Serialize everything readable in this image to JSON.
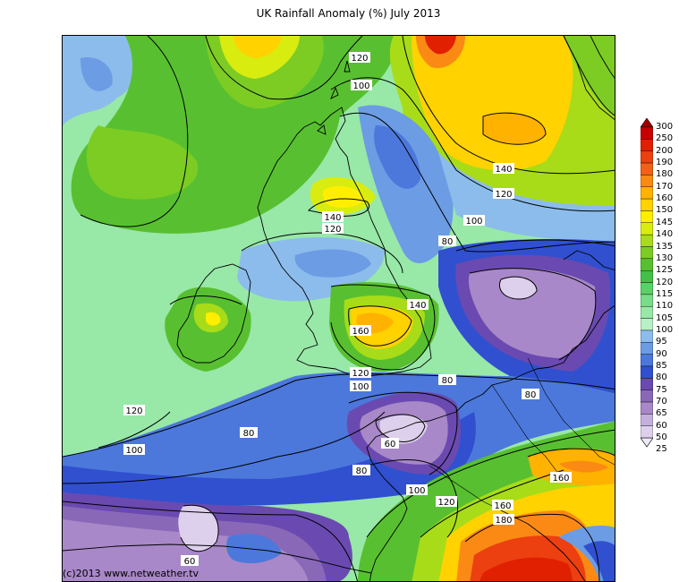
{
  "title": "UK Rainfall Anomaly (%) July 2013",
  "copyright": "(c)2013 www.netweather.tv",
  "legend": {
    "levels": [
      "300",
      "250",
      "200",
      "190",
      "180",
      "170",
      "160",
      "150",
      "145",
      "140",
      "135",
      "130",
      "125",
      "120",
      "115",
      "110",
      "105",
      "100",
      "95",
      "90",
      "85",
      "80",
      "75",
      "70",
      "65",
      "60",
      "50",
      "25"
    ],
    "colors": [
      "#a00000",
      "#c80000",
      "#e02000",
      "#ec4010",
      "#f46018",
      "#fa8a14",
      "#ffb200",
      "#ffd200",
      "#ffee00",
      "#d8ec10",
      "#a8dc18",
      "#7ccc24",
      "#58c030",
      "#44c048",
      "#5cd068",
      "#78dc88",
      "#98e8a8",
      "#b8f0c8",
      "#8cbcec",
      "#6c9ce4",
      "#4c78dc",
      "#3050d0",
      "#6a4ab0",
      "#8a68b8",
      "#a888c8",
      "#c4b0dc",
      "#ddd0ec"
    ]
  },
  "contour_labels": [
    "120",
    "100",
    "140",
    "140",
    "120",
    "100",
    "80",
    "120",
    "140",
    "160",
    "120",
    "100",
    "80",
    "80",
    "100",
    "120",
    "80",
    "60",
    "80",
    "100",
    "120",
    "160",
    "180",
    "160",
    "60"
  ]
}
